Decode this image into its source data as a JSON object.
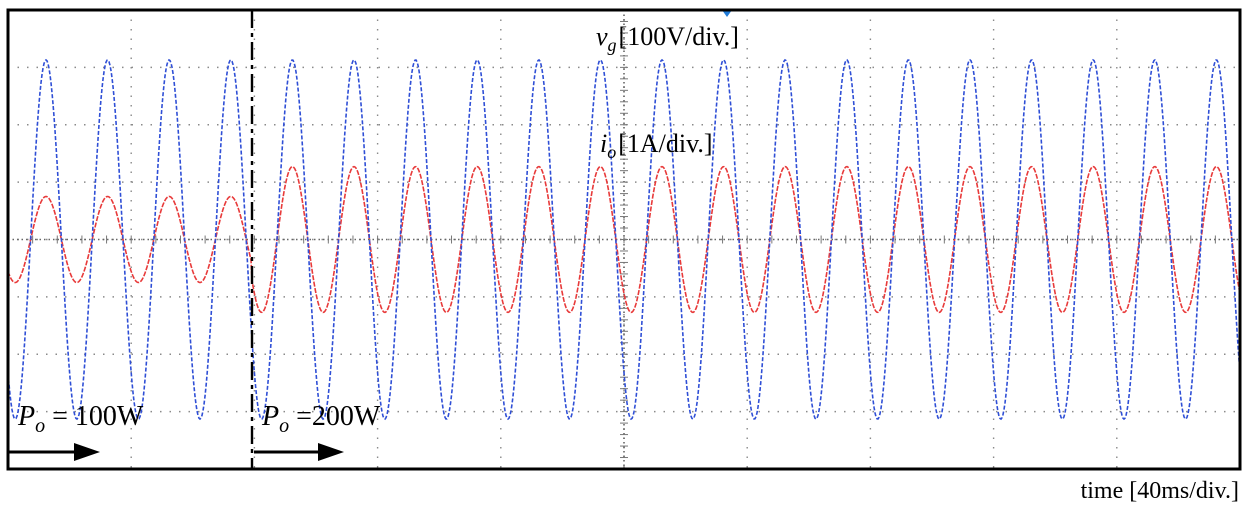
{
  "chart_data": {
    "type": "line",
    "xlabel": "time [40ms/div.]",
    "x_div_ms": 40,
    "grid": true,
    "grid_divisions": {
      "x": 10,
      "y": 8
    },
    "step_time_ms": 40,
    "series": [
      {
        "name": "v_g",
        "label_main": "v",
        "label_sub": "g",
        "label_unit": "[100V/div.]",
        "scale_per_div": "100V",
        "frequency_hz": 50,
        "amplitude_div": 3.13,
        "offset_div": 0,
        "color": "#2f4fd6"
      },
      {
        "name": "i_o",
        "label_main": "i",
        "label_sub": "o",
        "label_unit": "[1A/div.]",
        "scale_per_div": "1A",
        "frequency_hz": 50,
        "amplitude_before_div": 0.75,
        "amplitude_after_div": 1.27,
        "offset_div": 0,
        "color": "#e83a3a"
      }
    ],
    "annotations": [
      {
        "id": "before",
        "main": "P",
        "sub": "o",
        "text": " = 100W",
        "arrow": "right"
      },
      {
        "id": "after",
        "main": "P",
        "sub": "o",
        "text": " =200W",
        "arrow": "right"
      }
    ]
  }
}
